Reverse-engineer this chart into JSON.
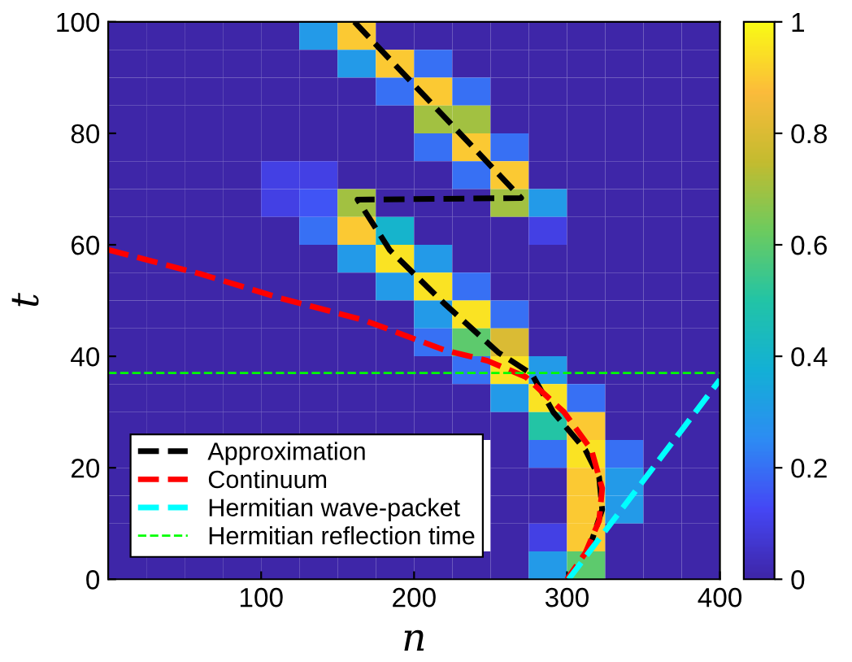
{
  "chart_data": {
    "type": "heatmap",
    "xlabel": "n",
    "ylabel": "t",
    "xlim": [
      0,
      400
    ],
    "ylim": [
      0,
      100
    ],
    "xticks": [
      100,
      200,
      300,
      400
    ],
    "yticks": [
      0,
      20,
      40,
      60,
      80,
      100
    ],
    "cells": [
      [
        0,
        0,
        0,
        0,
        0,
        0.3,
        0.9,
        0,
        0,
        0,
        0,
        0,
        0,
        0,
        0,
        0
      ],
      [
        0,
        0,
        0,
        0,
        0,
        0,
        0.3,
        0.9,
        0.2,
        0,
        0,
        0,
        0,
        0,
        0,
        0
      ],
      [
        0,
        0,
        0,
        0,
        0,
        0,
        0,
        0.2,
        0.9,
        0.2,
        0,
        0,
        0,
        0,
        0,
        0
      ],
      [
        0,
        0,
        0,
        0,
        0,
        0,
        0,
        0,
        0.7,
        0.7,
        0,
        0,
        0,
        0,
        0,
        0
      ],
      [
        0,
        0,
        0,
        0,
        0,
        0,
        0,
        0,
        0.2,
        0.9,
        0.2,
        0,
        0,
        0,
        0,
        0
      ],
      [
        0,
        0,
        0,
        0,
        0.1,
        0.1,
        0,
        0,
        0,
        0.2,
        0.9,
        0,
        0,
        0,
        0,
        0
      ],
      [
        0,
        0,
        0,
        0,
        0.1,
        0.15,
        0.7,
        0,
        0,
        0,
        0.7,
        0.3,
        0,
        0,
        0,
        0
      ],
      [
        0,
        0,
        0,
        0,
        0,
        0.2,
        0.9,
        0.4,
        0,
        0,
        0,
        0.1,
        0,
        0,
        0,
        0
      ],
      [
        0,
        0,
        0,
        0,
        0,
        0,
        0.3,
        0.95,
        0.3,
        0,
        0,
        0,
        0,
        0,
        0,
        0
      ],
      [
        0,
        0,
        0,
        0,
        0,
        0,
        0,
        0.3,
        0.95,
        0.2,
        0,
        0,
        0,
        0,
        0,
        0
      ],
      [
        0,
        0,
        0,
        0,
        0,
        0,
        0,
        0,
        0.3,
        0.95,
        0.2,
        0,
        0,
        0,
        0,
        0
      ],
      [
        0,
        0,
        0,
        0,
        0,
        0,
        0,
        0,
        0.2,
        0.6,
        0.8,
        0,
        0,
        0,
        0,
        0
      ],
      [
        0,
        0,
        0,
        0,
        0,
        0,
        0,
        0,
        0,
        0.2,
        0.95,
        0.3,
        0,
        0,
        0,
        0
      ],
      [
        0,
        0,
        0,
        0,
        0,
        0,
        0,
        0,
        0,
        0,
        0.3,
        0.95,
        0.2,
        0,
        0,
        0
      ],
      [
        0,
        0,
        0,
        0,
        0,
        0,
        0,
        0,
        0,
        0,
        0,
        0.5,
        0.9,
        0,
        0,
        0
      ],
      [
        0,
        null,
        null,
        null,
        null,
        null,
        null,
        null,
        null,
        null,
        0,
        0.2,
        0.95,
        0.2,
        0,
        0
      ],
      [
        0,
        null,
        null,
        null,
        null,
        null,
        null,
        null,
        null,
        null,
        0,
        0,
        0.9,
        0.3,
        0,
        0
      ],
      [
        0,
        null,
        null,
        null,
        null,
        null,
        null,
        null,
        null,
        null,
        0,
        0,
        0.9,
        0.3,
        0,
        0
      ],
      [
        0,
        null,
        null,
        null,
        null,
        null,
        null,
        null,
        null,
        null,
        0,
        0.1,
        0.9,
        0,
        0,
        0
      ],
      [
        0,
        0,
        0,
        0,
        0,
        0,
        0,
        0,
        0,
        0,
        0,
        0.3,
        0.6,
        0,
        0,
        0
      ]
    ],
    "clim": [
      0,
      1
    ],
    "cticks": [
      0,
      0.2,
      0.4,
      0.6,
      0.8,
      1
    ],
    "series": [
      {
        "type": "line",
        "name": "Approximation",
        "color": "#000000",
        "line_style": "dashed",
        "x": [
          161,
          270,
          163,
          184,
          220,
          255,
          277,
          291,
          312,
          321,
          323,
          317,
          314
        ],
        "values": [
          100,
          68.4,
          68.1,
          59.1,
          49.4,
          40.7,
          36.8,
          30,
          23.2,
          18.3,
          12.5,
          7.6,
          5.2
        ]
      },
      {
        "type": "line",
        "name": "Continuum",
        "color": "#ff0000",
        "line_style": "dashed",
        "x": [
          0,
          60,
          113,
          167,
          220,
          248,
          273,
          298,
          316,
          323,
          321,
          312,
          300
        ],
        "values": [
          59.1,
          54.8,
          50.4,
          46.5,
          41.1,
          39.2,
          36.3,
          30,
          23.2,
          16.3,
          10.5,
          4.7,
          0
        ]
      },
      {
        "type": "line",
        "name": "Hermitian wave-packet",
        "color": "#00ffff",
        "line_style": "dashed",
        "x": [
          301,
          400
        ],
        "values": [
          0,
          35.8
        ]
      }
    ],
    "ref_lines": [
      {
        "axis": "y",
        "value": 37,
        "label": "Hermitian reflection time",
        "color": "#00ff00",
        "line_style": "dashed"
      }
    ],
    "legend": "bottom left",
    "grid": false
  }
}
